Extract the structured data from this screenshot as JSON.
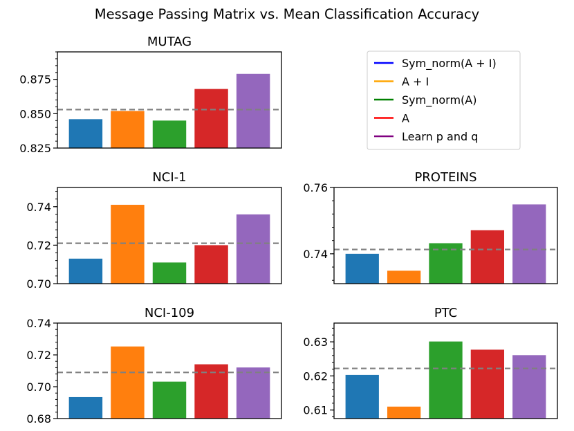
{
  "figure": {
    "title": "Message Passing Matrix vs. Mean Classification Accuracy"
  },
  "legend": {
    "placement": "top-right",
    "items": [
      {
        "label": "Sym_norm(A + I)",
        "color": "#0000ff"
      },
      {
        "label": "A + I",
        "color": "#ffa500"
      },
      {
        "label": "Sym_norm(A)",
        "color": "#008000"
      },
      {
        "label": "A",
        "color": "#ff0000"
      },
      {
        "label": "Learn p and q",
        "color": "#800080"
      }
    ]
  },
  "bar_colors": [
    "#1f77b4",
    "#ff7f0e",
    "#2ca02c",
    "#d62728",
    "#9467bd"
  ],
  "chart_data": [
    {
      "type": "bar",
      "title": "MUTAG",
      "categories": [
        "Sym_norm(A + I)",
        "A + I",
        "Sym_norm(A)",
        "A",
        "Learn p and q"
      ],
      "values": [
        0.846,
        0.852,
        0.845,
        0.868,
        0.879
      ],
      "reference_line": 0.853,
      "ylim": [
        0.825,
        0.895
      ],
      "yticks": [
        "0.825",
        "0.850",
        "0.875"
      ],
      "ytick_values": [
        0.825,
        0.85,
        0.875
      ],
      "grid": false
    },
    {
      "type": "bar",
      "title": "NCI-1",
      "categories": [
        "Sym_norm(A + I)",
        "A + I",
        "Sym_norm(A)",
        "A",
        "Learn p and q"
      ],
      "values": [
        0.713,
        0.741,
        0.711,
        0.72,
        0.736
      ],
      "reference_line": 0.721,
      "ylim": [
        0.7,
        0.75
      ],
      "yticks": [
        "0.70",
        "0.72",
        "0.74"
      ],
      "ytick_values": [
        0.7,
        0.72,
        0.74
      ],
      "grid": false
    },
    {
      "type": "bar",
      "title": "PROTEINS",
      "categories": [
        "Sym_norm(A + I)",
        "A + I",
        "Sym_norm(A)",
        "A",
        "Learn p and q"
      ],
      "values": [
        0.74,
        0.7349,
        0.7432,
        0.7471,
        0.7549
      ],
      "reference_line": 0.7413,
      "ylim": [
        0.731,
        0.76
      ],
      "yticks": [
        "0.740",
        "0.760"
      ],
      "ytick_labels": [
        "0.74",
        "0.76"
      ],
      "ytick_values": [
        0.74,
        0.76
      ],
      "grid": false
    },
    {
      "type": "bar",
      "title": "NCI-109",
      "categories": [
        "Sym_norm(A + I)",
        "A + I",
        "Sym_norm(A)",
        "A",
        "Learn p and q"
      ],
      "values": [
        0.6935,
        0.7253,
        0.7032,
        0.7141,
        0.7121
      ],
      "reference_line": 0.709,
      "ylim": [
        0.68,
        0.74
      ],
      "yticks": [
        "0.68",
        "0.70",
        "0.72",
        "0.74"
      ],
      "ytick_values": [
        0.68,
        0.7,
        0.72,
        0.74
      ],
      "grid": false
    },
    {
      "type": "bar",
      "title": "PTC",
      "categories": [
        "Sym_norm(A + I)",
        "A + I",
        "Sym_norm(A)",
        "A",
        "Learn p and q"
      ],
      "values": [
        0.6203,
        0.611,
        0.6301,
        0.6277,
        0.6261
      ],
      "reference_line": 0.6222,
      "ylim": [
        0.6075,
        0.6355
      ],
      "yticks": [
        "0.61",
        "0.62",
        "0.63"
      ],
      "ytick_values": [
        0.61,
        0.62,
        0.63
      ],
      "grid": false
    }
  ]
}
